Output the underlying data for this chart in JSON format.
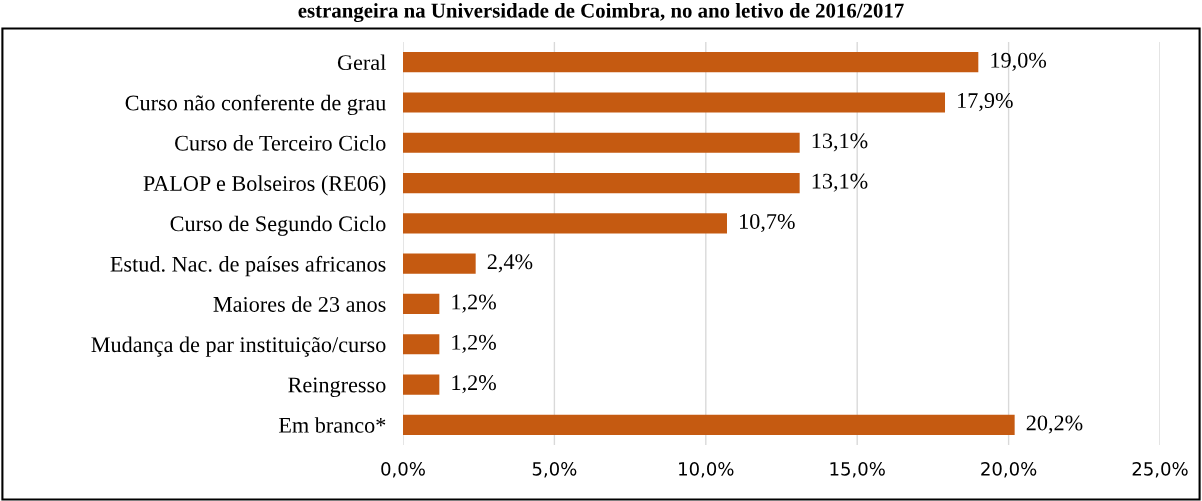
{
  "chart_data": {
    "type": "bar",
    "orientation": "horizontal",
    "title": "estrangeira na Universidade de Coimbra, no ano letivo de 2016/2017",
    "categories": [
      "Geral",
      "Curso não conferente de grau",
      "Curso de Terceiro Ciclo",
      "PALOP e Bolseiros (RE06)",
      "Curso de Segundo Ciclo",
      "Estud. Nac. de países africanos",
      "Maiores de 23 anos",
      "Mudança de par instituição/curso",
      "Reingresso",
      "Em branco*"
    ],
    "values": [
      19.0,
      17.9,
      13.1,
      13.1,
      10.7,
      2.4,
      1.2,
      1.2,
      1.2,
      20.2
    ],
    "value_labels": [
      "19,0%",
      "17,9%",
      "13,1%",
      "13,1%",
      "10,7%",
      "2,4%",
      "1,2%",
      "1,2%",
      "1,2%",
      "20,2%"
    ],
    "color": "#c55a11",
    "xlim": [
      0,
      25
    ],
    "xticks": [
      {
        "value": 0,
        "label": "0,0%"
      },
      {
        "value": 5,
        "label": "5,0%"
      },
      {
        "value": 10,
        "label": "10,0%"
      },
      {
        "value": 15,
        "label": "15,0%"
      },
      {
        "value": 20,
        "label": "20,0%"
      },
      {
        "value": 25,
        "label": "25,0%"
      }
    ],
    "grid": "x"
  }
}
